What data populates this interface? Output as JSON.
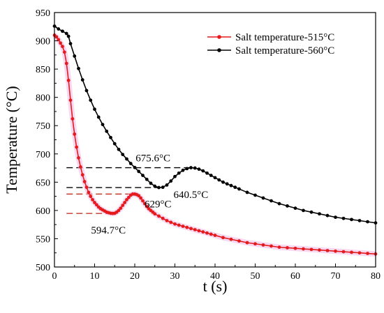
{
  "chart_data": {
    "type": "line",
    "title": "",
    "xlabel": "t (s)",
    "ylabel": "Temperature (°C)",
    "xlim": [
      0,
      80
    ],
    "ylim": [
      500,
      950
    ],
    "xticks": [
      0,
      10,
      20,
      30,
      40,
      50,
      60,
      70,
      80
    ],
    "yticks": [
      500,
      550,
      600,
      650,
      700,
      750,
      800,
      850,
      900,
      950
    ],
    "grid": false,
    "legend_position": "top-right",
    "series": [
      {
        "name": "Salt temperature-515°C",
        "color": "#e41a1c",
        "marker": "circle",
        "x": [
          0,
          0.5,
          1,
          1.5,
          2,
          2.5,
          3,
          3.5,
          4,
          4.5,
          5,
          5.5,
          6,
          6.5,
          7,
          7.5,
          8,
          8.5,
          9,
          9.5,
          10,
          10.5,
          11,
          11.5,
          12,
          12.5,
          13,
          13.5,
          14,
          14.5,
          15,
          15.5,
          16,
          16.5,
          17,
          17.5,
          18,
          18.5,
          19,
          19.5,
          20,
          20.5,
          21,
          21.5,
          22,
          22.5,
          23,
          23.5,
          24,
          24.5,
          25,
          26,
          27,
          28,
          29,
          30,
          31,
          32,
          33,
          34,
          35,
          36,
          37,
          38,
          39,
          40,
          42,
          44,
          46,
          48,
          50,
          52,
          54,
          56,
          58,
          60,
          62,
          64,
          66,
          68,
          70,
          72,
          74,
          76,
          78,
          80
        ],
        "y": [
          910,
          907,
          902,
          896,
          890,
          880,
          860,
          830,
          795,
          762,
          735,
          712,
          693,
          677,
          663,
          651,
          641,
          632,
          625,
          619,
          614,
          610,
          606,
          603,
          601,
          599,
          597,
          596,
          595,
          594.7,
          595,
          597,
          600,
          604,
          609,
          614,
          619,
          623,
          627,
          629,
          629,
          628,
          626,
          622,
          617,
          612,
          607,
          603,
          600,
          597,
          594,
          590,
          586,
          582,
          579,
          576,
          574,
          572,
          570,
          568,
          566,
          564,
          562,
          560,
          558,
          556,
          552,
          549,
          546,
          543,
          541,
          539,
          537,
          535,
          534,
          533,
          532,
          531,
          530,
          529,
          528,
          527,
          526,
          525,
          524,
          523
        ]
      },
      {
        "name": "Salt temperature-560°C",
        "color": "#000000",
        "marker": "circle",
        "x": [
          0,
          1,
          2,
          3,
          3.5,
          4,
          5,
          6,
          7,
          8,
          9,
          10,
          11,
          12,
          13,
          14,
          15,
          16,
          17,
          18,
          19,
          20,
          21,
          22,
          23,
          24,
          25,
          26,
          27,
          28,
          29,
          30,
          31,
          32,
          33,
          34,
          35,
          36,
          37,
          38,
          39,
          40,
          41,
          42,
          43,
          44,
          45,
          46,
          48,
          50,
          52,
          54,
          56,
          58,
          60,
          62,
          64,
          66,
          68,
          70,
          72,
          74,
          76,
          78,
          80
        ],
        "y": [
          926,
          921,
          917,
          913,
          908,
          895,
          873,
          851,
          831,
          812,
          795,
          779,
          765,
          752,
          740,
          729,
          718,
          708,
          699,
          691,
          683,
          676,
          669,
          662,
          655,
          648,
          643,
          640.5,
          641,
          645,
          652,
          660,
          666,
          671,
          674,
          675.6,
          675,
          673,
          670,
          666,
          662,
          658,
          654,
          650,
          647,
          644,
          641,
          638,
          632,
          627,
          622,
          617,
          612,
          608,
          604,
          600,
          597,
          594,
          591,
          588,
          586,
          584,
          582,
          580,
          578
        ]
      }
    ],
    "annotations": [
      {
        "text": "675.6°C",
        "x": 35,
        "y": 675.6,
        "line_x": [
          3,
          35
        ]
      },
      {
        "text": "640.5°C",
        "x": 26,
        "y": 640.5,
        "line_x": [
          3,
          26
        ]
      },
      {
        "text": "629°C",
        "x": 20,
        "y": 629,
        "line_x": [
          3,
          20
        ]
      },
      {
        "text": "594.7°C",
        "x": 14.5,
        "y": 594.7,
        "line_x": [
          3,
          14.5
        ]
      }
    ]
  }
}
